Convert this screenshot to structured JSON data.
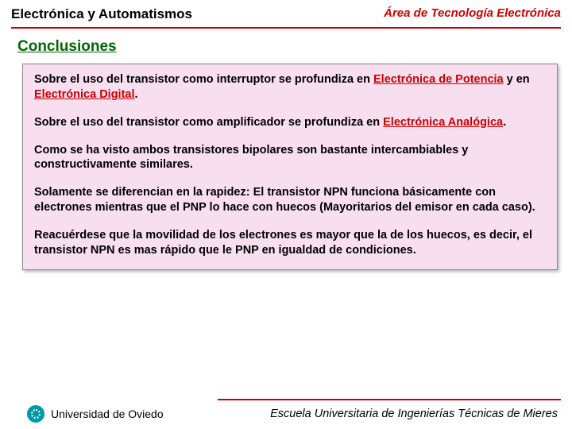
{
  "header": {
    "left": "Electrónica y Automatismos",
    "right": "Área de Tecnología Electrónica"
  },
  "section_title": "Conclusiones",
  "paragraphs": {
    "p1_a": "Sobre el uso del transistor como interruptor se profundiza en ",
    "p1_link1": "Electrónica de Potencia",
    "p1_b": " y en ",
    "p1_link2": "Electrónica Digital",
    "p1_c": ".",
    "p2_a": "Sobre el uso del transistor como amplificador se profundiza en ",
    "p2_link1": "Electrónica Analógica",
    "p2_b": ".",
    "p3": "Como se ha visto ambos transistores bipolares son bastante intercambiables y constructivamente similares.",
    "p4": "Solamente se diferencian en la rapidez: El transistor NPN funciona básicamente con electrones mientras que el PNP lo hace con huecos (Mayoritarios del emisor en cada caso).",
    "p5": "Reacuérdese que la movilidad de los electrones es mayor que la de los huecos, es decir, el transistor NPN es mas rápido que le PNP en igualdad de condiciones."
  },
  "footer": {
    "university": "Universidad de Oviedo",
    "school": "Escuela Universitaria de Ingenierías Técnicas de Mieres"
  },
  "colors": {
    "accent_red": "#cc0000",
    "title_green": "#006600",
    "box_bg": "#f8dff0",
    "logo_bg": "#0099aa"
  }
}
